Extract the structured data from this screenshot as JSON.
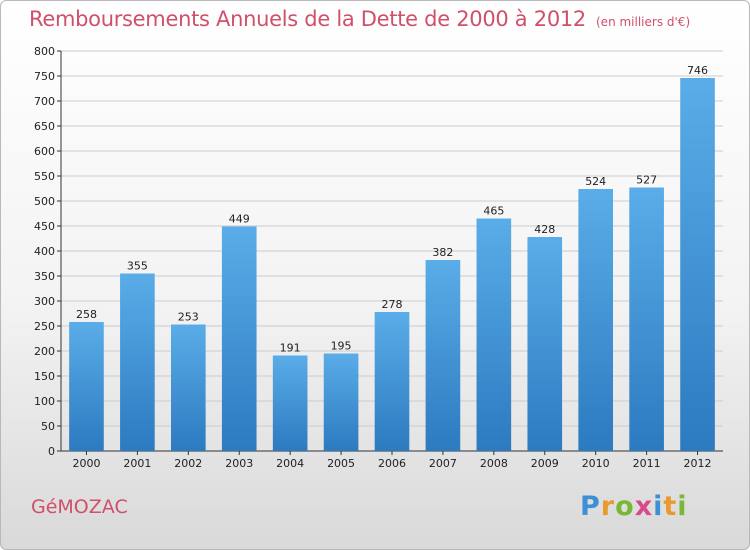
{
  "header": {
    "title": "Remboursements Annuels de la Dette de 2000 à 2012",
    "unit": "(en milliers d'€)"
  },
  "footer": {
    "commune": "GéMOZAC",
    "logo": [
      {
        "ch": "P",
        "color": "#3d8fd6"
      },
      {
        "ch": "r",
        "color": "#e89a2c"
      },
      {
        "ch": "o",
        "color": "#78b835"
      },
      {
        "ch": "x",
        "color": "#d84a8a"
      },
      {
        "ch": "i",
        "color": "#3d8fd6"
      },
      {
        "ch": "t",
        "color": "#e89a2c"
      },
      {
        "ch": "i",
        "color": "#78b835"
      }
    ]
  },
  "colors": {
    "title": "#d0506a",
    "bar_top": "#5aade8",
    "bar_bottom": "#2c7ac0",
    "grid": "#cccccc"
  },
  "chart_data": {
    "type": "bar",
    "categories": [
      "2000",
      "2001",
      "2002",
      "2003",
      "2004",
      "2005",
      "2006",
      "2007",
      "2008",
      "2009",
      "2010",
      "2011",
      "2012"
    ],
    "values": [
      258,
      355,
      253,
      449,
      191,
      195,
      278,
      382,
      465,
      428,
      524,
      527,
      746
    ],
    "ylim": [
      0,
      800
    ],
    "yticks": [
      0,
      50,
      100,
      150,
      200,
      250,
      300,
      350,
      400,
      450,
      500,
      550,
      600,
      650,
      700,
      750,
      800
    ],
    "grid": true,
    "data_labels": true
  }
}
